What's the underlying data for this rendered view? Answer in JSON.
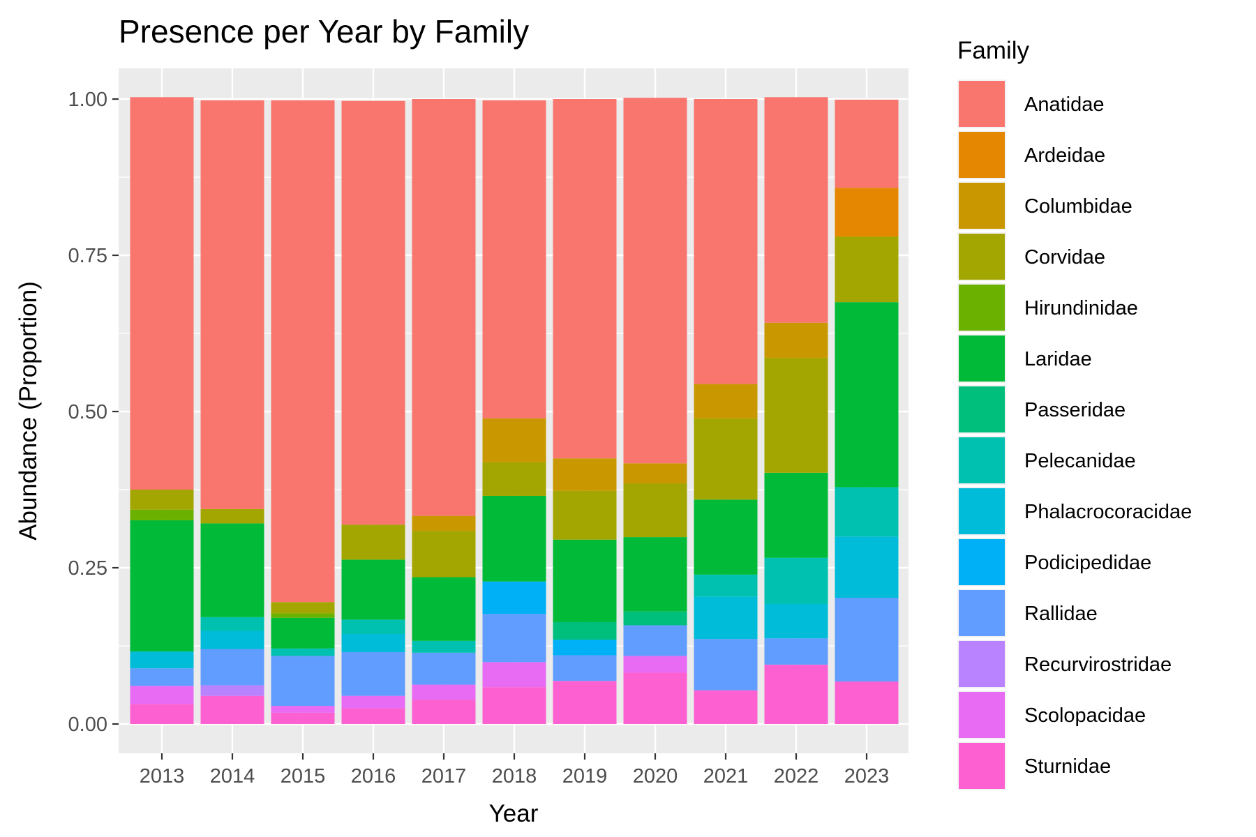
{
  "chart_data": {
    "type": "bar",
    "stacked": true,
    "title": "Presence per Year by Family",
    "xlabel": "Year",
    "ylabel": "Abundance (Proportion)",
    "ylim": [
      0,
      1
    ],
    "yticks": [
      "0.00",
      "0.25",
      "0.50",
      "0.75",
      "1.00"
    ],
    "grid": true,
    "legend_placement": "right",
    "legend_title": "Family",
    "categories": [
      "2013",
      "2014",
      "2015",
      "2016",
      "2017",
      "2018",
      "2019",
      "2020",
      "2021",
      "2022",
      "2023"
    ],
    "series": [
      {
        "name": "Anatidae",
        "color": "#F8766D",
        "values": [
          0.628,
          0.654,
          0.803,
          0.678,
          0.667,
          0.509,
          0.575,
          0.585,
          0.456,
          0.361,
          0.141
        ]
      },
      {
        "name": "Ardeidae",
        "color": "#E58700",
        "values": [
          0,
          0,
          0,
          0,
          0,
          0,
          0,
          0,
          0,
          0,
          0.078
        ]
      },
      {
        "name": "Columbidae",
        "color": "#C99800",
        "values": [
          0,
          0,
          0,
          0,
          0.024,
          0.07,
          0.052,
          0.032,
          0.055,
          0.056,
          0
        ]
      },
      {
        "name": "Corvidae",
        "color": "#A3A500",
        "values": [
          0.032,
          0.023,
          0.018,
          0.056,
          0.074,
          0.054,
          0.078,
          0.086,
          0.13,
          0.184,
          0.105
        ]
      },
      {
        "name": "Hirundinidae",
        "color": "#6BB100",
        "values": [
          0.017,
          0,
          0.007,
          0,
          0,
          0,
          0,
          0,
          0,
          0,
          0
        ]
      },
      {
        "name": "Laridae",
        "color": "#00BA38",
        "values": [
          0.21,
          0.15,
          0.049,
          0.096,
          0.102,
          0.137,
          0.132,
          0.119,
          0.12,
          0.136,
          0.296
        ]
      },
      {
        "name": "Passeridae",
        "color": "#00BF7D",
        "values": [
          0,
          0,
          0,
          0,
          0,
          0,
          0.028,
          0.022,
          0,
          0,
          0
        ]
      },
      {
        "name": "Pelecanidae",
        "color": "#00C0AF",
        "values": [
          0,
          0.022,
          0.012,
          0.023,
          0.019,
          0,
          0,
          0,
          0.035,
          0.074,
          0.079
        ]
      },
      {
        "name": "Phalacrocoracidae",
        "color": "#00BCD8",
        "values": [
          0.027,
          0.029,
          0,
          0.029,
          0,
          0,
          0,
          0,
          0.068,
          0.055,
          0.098
        ]
      },
      {
        "name": "Podicipedidae",
        "color": "#00B0F6",
        "values": [
          0,
          0,
          0,
          0,
          0,
          0.052,
          0.025,
          0,
          0,
          0,
          0
        ]
      },
      {
        "name": "Rallidae",
        "color": "#619CFF",
        "values": [
          0.028,
          0.058,
          0.08,
          0.07,
          0.051,
          0.077,
          0.041,
          0.049,
          0.082,
          0.042,
          0.134
        ]
      },
      {
        "name": "Recurvirostridae",
        "color": "#B983FF",
        "values": [
          0,
          0.017,
          0,
          0,
          0,
          0,
          0,
          0,
          0,
          0,
          0
        ]
      },
      {
        "name": "Scolopacidae",
        "color": "#E76BF3",
        "values": [
          0.029,
          0,
          0.011,
          0.02,
          0.024,
          0.04,
          0,
          0.027,
          0,
          0,
          0
        ]
      },
      {
        "name": "Sturnidae",
        "color": "#FD61D1",
        "values": [
          0.032,
          0.045,
          0.018,
          0.025,
          0.039,
          0.059,
          0.069,
          0.082,
          0.054,
          0.095,
          0.068
        ]
      }
    ]
  }
}
